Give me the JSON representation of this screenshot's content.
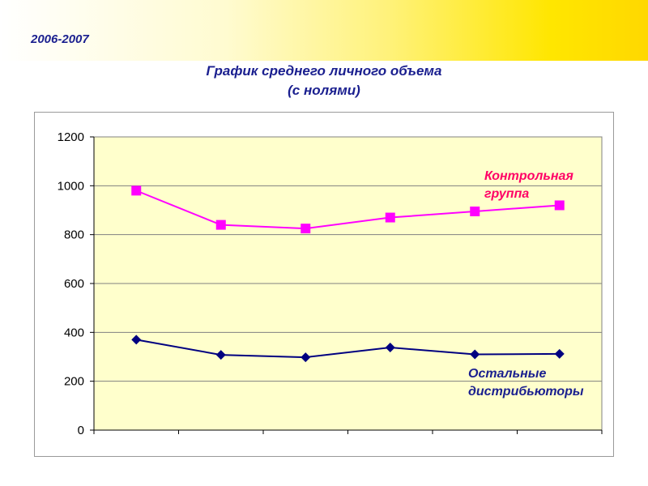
{
  "header": {
    "years": "2006-2007",
    "title_line1": "График среднего личного объема",
    "title_line2": "(с нолями)"
  },
  "chart_data": {
    "type": "line",
    "x": [
      1,
      2,
      3,
      4,
      5,
      6
    ],
    "ylim": [
      0,
      1200
    ],
    "yticks": [
      "0",
      "200",
      "400",
      "600",
      "800",
      "1000",
      "1200"
    ],
    "grid": true,
    "series": [
      {
        "name": "Контрольная группа",
        "label_lines": [
          "Контрольная",
          "группа"
        ],
        "color": "#ff00ff",
        "marker": "square",
        "values": [
          980,
          840,
          825,
          870,
          895,
          920
        ]
      },
      {
        "name": "Остальные дистрибьюторы",
        "label_lines": [
          "Остальные",
          "дистрибьюторы"
        ],
        "color": "#000080",
        "marker": "diamond",
        "values": [
          370,
          308,
          298,
          338,
          310,
          312
        ]
      }
    ]
  },
  "colors": {
    "plot_background": "#ffffcc",
    "title": "#1a1f8f",
    "gridline": "#808080"
  }
}
